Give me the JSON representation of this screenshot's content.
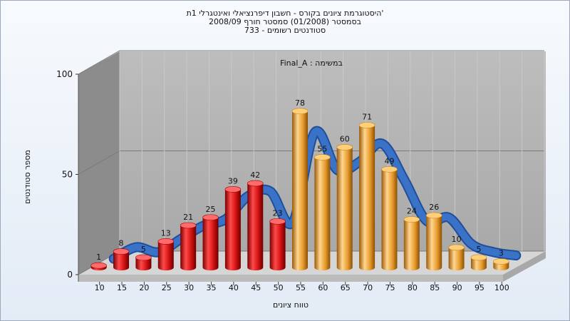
{
  "chart_data": {
    "type": "bar",
    "title_lines": [
      "היסטוגרמת ציונים בקורס - חשבון דיפרנציאלי ואינטגרלי 1ת'",
      "בסמסטר  (01/2008)  סמסטר חורף 2008/09",
      "סטודנטים רשומים - 733"
    ],
    "subtitle": "במשימה : Final_A",
    "xlabel": "טווח ציונים",
    "ylabel": "מספר סטודנטים",
    "ylim": [
      0,
      100
    ],
    "yticks": [
      0,
      50,
      100
    ],
    "categories": [
      "10",
      "15",
      "20",
      "25",
      "30",
      "35",
      "40",
      "45",
      "50",
      "55",
      "60",
      "65",
      "70",
      "75",
      "80",
      "85",
      "90",
      "95",
      "100"
    ],
    "values": [
      1,
      8,
      5,
      13,
      21,
      25,
      39,
      42,
      23,
      78,
      55,
      60,
      71,
      49,
      24,
      26,
      10,
      5,
      3
    ],
    "fail_threshold": 55,
    "colors": {
      "fail": "#e01818",
      "pass": "#f0a838",
      "curve": "#3a72c8",
      "wall": "#b2b2b2",
      "side_wall": "#8a8a8a",
      "floor": "#d8d8d8"
    }
  }
}
